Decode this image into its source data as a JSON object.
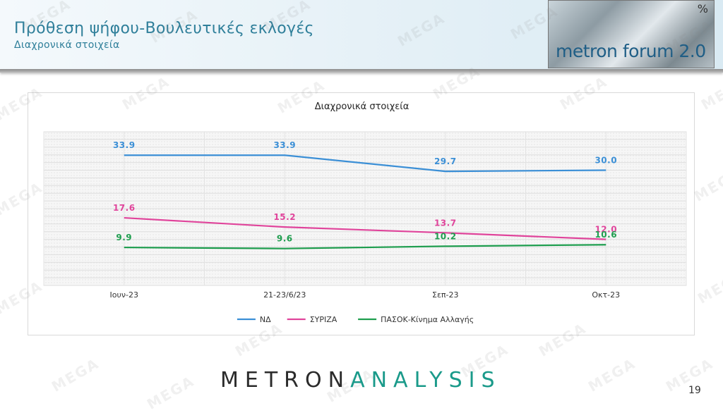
{
  "header": {
    "title": "Πρόθεση ψήφου-Βουλευτικές εκλογές",
    "subtitle": "Διαχρονικά στοιχεία",
    "logo_text": "metron forum 2.0",
    "logo_symbol": "%"
  },
  "watermark": "MEGA",
  "chart_data": {
    "type": "line",
    "title": "Διαχρονικά στοιχεία",
    "categories": [
      "Ιουν-23",
      "21-23/6/23",
      "Σεπ-23",
      "Οκτ-23"
    ],
    "ylim": [
      0,
      40
    ],
    "grid": true,
    "legend_position": "bottom",
    "series": [
      {
        "name": "ΝΔ",
        "color": "#3b8fd6",
        "values": [
          33.9,
          33.9,
          29.7,
          30.0
        ],
        "labels": [
          "33.9",
          "33.9",
          "29.7",
          "30.0"
        ]
      },
      {
        "name": "ΣΥΡΙΖΑ",
        "color": "#e0449b",
        "values": [
          17.6,
          15.2,
          13.7,
          12.0
        ],
        "labels": [
          "17.6",
          "15.2",
          "13.7",
          "12.0"
        ]
      },
      {
        "name": "ΠΑΣΟΚ-Κίνημα Αλλαγής",
        "color": "#1f9e4f",
        "values": [
          9.9,
          9.6,
          10.2,
          10.6
        ],
        "labels": [
          "9.9",
          "9.6",
          "10.2",
          "10.6"
        ]
      }
    ]
  },
  "footer": {
    "brand_part1": "METRON",
    "brand_part2": "ANALYSIS",
    "page_number": "19"
  }
}
